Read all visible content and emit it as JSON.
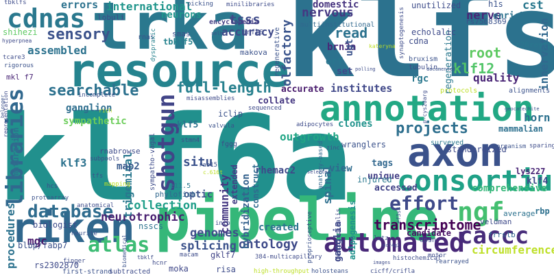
{
  "words": [
    {
      "text": "klf6a",
      "color": "#21908d"
    },
    {
      "text": "klfs",
      "color": "#2c728e"
    },
    {
      "text": "trka",
      "color": "#2a788e"
    },
    {
      "text": "resource",
      "color": "#25838e"
    },
    {
      "text": "pipeline",
      "color": "#35b779"
    },
    {
      "text": "annotation",
      "color": "#22a884"
    },
    {
      "text": "riken",
      "color": "#30678d"
    },
    {
      "text": "axon",
      "color": "#3b528b"
    },
    {
      "text": "consortium",
      "color": "#1fa187"
    },
    {
      "text": "libraries",
      "color": "#31688e"
    },
    {
      "text": "cdnas",
      "color": "#2a788e"
    },
    {
      "text": "shotgun",
      "color": "#414487"
    },
    {
      "text": "automated",
      "color": "#482878"
    },
    {
      "text": "caccc",
      "color": "#472c7a"
    },
    {
      "text": "ngf",
      "color": "#44bf70"
    },
    {
      "text": "effort",
      "color": "#3e4989"
    },
    {
      "text": "database",
      "color": "#2f6c8e"
    },
    {
      "text": "sensory",
      "color": "#3b528b"
    },
    {
      "text": "atlas",
      "color": "#3dbc74"
    },
    {
      "text": "searchable",
      "color": "#2c718e"
    },
    {
      "text": "full-length",
      "color": "#27808e"
    },
    {
      "text": "projects",
      "color": "#2e6f8e"
    },
    {
      "text": "klf12",
      "color": "#52c569"
    },
    {
      "text": "transcriptome",
      "color": "#440154"
    },
    {
      "text": "ontology",
      "color": "#3e4a89"
    },
    {
      "text": "assembled",
      "color": "#2c728e"
    },
    {
      "text": "international",
      "color": "#1f958b"
    },
    {
      "text": "accuracy",
      "color": "#3e4989"
    },
    {
      "text": "read",
      "color": "#2c728e"
    },
    {
      "text": "root",
      "color": "#5ec962"
    },
    {
      "text": "nervous",
      "color": "#453882"
    },
    {
      "text": "domestic",
      "color": "#46337f"
    },
    {
      "text": "neurotrophic",
      "color": "#481f70"
    },
    {
      "text": "genomes",
      "color": "#3e4c8a"
    },
    {
      "text": "splicing",
      "color": "#3b528b"
    },
    {
      "text": "collection",
      "color": "#1f9e89"
    },
    {
      "text": "comprehensive",
      "color": "#35b779"
    },
    {
      "text": "mgc",
      "color": "#481a6c"
    },
    {
      "text": "procedures",
      "color": "#2c728e"
    },
    {
      "text": "trigeminal",
      "color": "#2a788e"
    },
    {
      "text": "sympathetic",
      "color": "#6ccd5a"
    },
    {
      "text": "ganglion",
      "color": "#2e6e8e"
    },
    {
      "text": "community",
      "color": "#453781"
    },
    {
      "text": "olfactory",
      "color": "#3a548c"
    },
    {
      "text": "innervation",
      "color": "#31688e"
    },
    {
      "text": "quality",
      "color": "#482475"
    },
    {
      "text": "nerve",
      "color": "#482677"
    },
    {
      "text": "cst",
      "color": "#2a788e"
    },
    {
      "text": "horn",
      "color": "#2c718e"
    },
    {
      "text": "mammalian",
      "color": "#2d708e"
    },
    {
      "text": "lys227",
      "color": "#482475"
    },
    {
      "text": "klf4",
      "color": "#3e4a89"
    },
    {
      "text": "rbp",
      "color": "#2d708e"
    },
    {
      "text": "outgrowth",
      "color": "#21a585"
    },
    {
      "text": "clones",
      "color": "#20928c"
    },
    {
      "text": "candidate",
      "color": "#471063"
    },
    {
      "text": "spinal",
      "color": "#2e6f8e"
    },
    {
      "text": "ganglia",
      "color": "#3f4788"
    },
    {
      "text": "adipogenesis",
      "color": "#20928c"
    },
    {
      "text": "rhemac2",
      "color": "#3f4889"
    },
    {
      "text": "hybridization",
      "color": "#34618d"
    },
    {
      "text": "extended",
      "color": "#433e85"
    },
    {
      "text": "construct",
      "color": "#306a8e"
    },
    {
      "text": "created",
      "color": "#2c738e"
    },
    {
      "text": "situ",
      "color": "#3b528b"
    },
    {
      "text": "klf3",
      "color": "#2c728e"
    },
    {
      "text": "map2",
      "color": "#38598c"
    },
    {
      "text": "optic",
      "color": "#3b528b"
    },
    {
      "text": "klf5",
      "color": "#2c728e"
    },
    {
      "text": "view",
      "color": "#2f6b8e"
    },
    {
      "text": "accessed",
      "color": "#414287"
    },
    {
      "text": "unique",
      "color": "#433e85"
    },
    {
      "text": "tags",
      "color": "#31678e"
    },
    {
      "text": "accurate",
      "color": "#481a6c"
    },
    {
      "text": "institutes",
      "color": "#3f4788"
    },
    {
      "text": "collate",
      "color": "#453781"
    },
    {
      "text": "errors",
      "color": "#2c728e"
    },
    {
      "text": "neurons",
      "color": "#1f968b"
    },
    {
      "text": "tsss",
      "color": "#3e4a89"
    },
    {
      "text": "encyclopedia",
      "color": "#433d84"
    },
    {
      "text": "brn3a",
      "color": "#482878"
    },
    {
      "text": "ugt",
      "color": "#3b528b"
    },
    {
      "text": "orf",
      "color": "#2a768e"
    },
    {
      "text": "set",
      "color": "#3e4a89"
    },
    {
      "text": "rgc",
      "color": "#2a788e"
    },
    {
      "text": "h1s",
      "color": "#3b528b"
    },
    {
      "text": "enriched",
      "color": "#2c728e"
    },
    {
      "text": "rs7568369",
      "color": "#3b528b"
    },
    {
      "text": "r26reyfp",
      "color": "#2a788e"
    },
    {
      "text": "tbklf5",
      "color": "#26828e"
    },
    {
      "text": "rnabrowse",
      "color": "#3e4c8a"
    },
    {
      "text": "maturation",
      "color": "#2e6f8e"
    },
    {
      "text": "phylofish",
      "color": "#31688e"
    },
    {
      "text": "iclip",
      "color": "#3b528b"
    },
    {
      "text": "mkl f7",
      "color": "#482475"
    },
    {
      "text": "shihezi",
      "color": "#5ec962"
    },
    {
      "text": "biologist",
      "color": "#3e4c8a"
    },
    {
      "text": "blbp/fabp7",
      "color": "#3b528b"
    },
    {
      "text": "nsscs",
      "color": "#2c728e"
    },
    {
      "text": "rs2302870",
      "color": "#3e4a89"
    },
    {
      "text": "gklf7",
      "color": "#414487"
    },
    {
      "text": "risa",
      "color": "#3e4c8a"
    },
    {
      "text": "moka",
      "color": "#3f4788"
    },
    {
      "text": "first-strand",
      "color": "#3b528b"
    },
    {
      "text": "subtracted",
      "color": "#3e4c8a"
    },
    {
      "text": "circumference",
      "color": "#bddf26"
    },
    {
      "text": "veldman",
      "color": "#3e4a89"
    },
    {
      "text": "frrslb",
      "color": "#31688e"
    },
    {
      "text": "average",
      "color": "#2c728e"
    },
    {
      "text": "lutz",
      "color": "#3e4c8a"
    },
    {
      "text": "histochemical",
      "color": "#3e4c8a"
    },
    {
      "text": "injured",
      "color": "#2a788e"
    },
    {
      "text": "standardized",
      "color": "#3e4c8a"
    },
    {
      "text": "wranglers",
      "color": "#3b528b"
    },
    {
      "text": "surveyed",
      "color": "#2a788e"
    },
    {
      "text": "unutilized",
      "color": "#3e4c8a"
    },
    {
      "text": "regeneration",
      "color": "#2a788e"
    },
    {
      "text": "echolalic",
      "color": "#3e4a89"
    },
    {
      "text": "regenerative",
      "color": "#3b528b"
    },
    {
      "text": "cdna",
      "color": "#3e4c8a"
    },
    {
      "text": "makova",
      "color": "#3b528b"
    },
    {
      "text": "multiinstitutional",
      "color": "#31688e"
    },
    {
      "text": "minilibraries",
      "color": "#3e4c8a"
    },
    {
      "text": "picking",
      "color": "#3b528b"
    },
    {
      "text": "smas",
      "color": "#3e4c8a"
    },
    {
      "text": "lobuli",
      "color": "#3e4a89"
    },
    {
      "text": "rnas",
      "color": "#3b528b"
    },
    {
      "text": "inflS",
      "color": "#3e4c8a"
    },
    {
      "text": "dyspraxic",
      "color": "#26828e"
    },
    {
      "text": "tcare3",
      "color": "#3e4c8a"
    },
    {
      "text": "rigorous",
      "color": "#3b528b"
    },
    {
      "text": "tbklfs",
      "color": "#3e4c8a"
    },
    {
      "text": "protocols",
      "color": "#bddf26"
    },
    {
      "text": "alignments",
      "color": "#3b528b"
    },
    {
      "text": "misassemblies",
      "color": "#3e4a89"
    },
    {
      "text": "tubulin",
      "color": "#3e4c8a"
    },
    {
      "text": "bruxism",
      "color": "#3b528b"
    },
    {
      "text": "synaptogenesis",
      "color": "#3e4c8a"
    },
    {
      "text": "proprioceptive",
      "color": "#3b528b"
    },
    {
      "text": "dpsn",
      "color": "#3e4a89"
    },
    {
      "text": "motor",
      "color": "#3e4c8a"
    },
    {
      "text": "rearrayed",
      "color": "#3b528b"
    },
    {
      "text": "longitudinalis",
      "color": "#3e4c8a"
    },
    {
      "text": "anatomy-based",
      "color": "#31688e"
    },
    {
      "text": "384-multicapillary",
      "color": "#3e4a89"
    },
    {
      "text": "high-throughput",
      "color": "#bddf26"
    },
    {
      "text": "holosteans",
      "color": "#3b528b"
    },
    {
      "text": "cicff/crifla",
      "color": "#3e4c8a"
    },
    {
      "text": "hcnr",
      "color": "#3e4a89"
    },
    {
      "text": "finger",
      "color": "#3e4c8a"
    },
    {
      "text": "biomedical",
      "color": "#3b528b"
    },
    {
      "text": "macam",
      "color": "#3e4c8a"
    },
    {
      "text": "inib",
      "color": "#3e4a89"
    },
    {
      "text": "neurite",
      "color": "#3b528b"
    },
    {
      "text": "anatomical",
      "color": "#3e4c8a"
    },
    {
      "text": "protoarray",
      "color": "#3b528b"
    },
    {
      "text": "hcs",
      "color": "#3e4c8a"
    },
    {
      "text": "tfs",
      "color": "#3b528b"
    },
    {
      "text": "mapping",
      "color": "#bddf26"
    },
    {
      "text": "subpools",
      "color": "#3e4c8a"
    },
    {
      "text": "fggg",
      "color": "#3e4a89"
    },
    {
      "text": "rab15",
      "color": "#3b528b"
    },
    {
      "text": "stmn4",
      "color": "#3e4c8a"
    },
    {
      "text": "valvula",
      "color": "#3b528b"
    },
    {
      "text": "adipocytes",
      "color": "#3e4c8a"
    },
    {
      "text": "sequenced",
      "color": "#3e4a89"
    },
    {
      "text": "incomplete",
      "color": "#3b528b"
    },
    {
      "text": "representation",
      "color": "#3e4c8a"
    },
    {
      "text": "sparing",
      "color": "#3e4c8a"
    },
    {
      "text": "organism",
      "color": "#3b528b"
    },
    {
      "text": "e11.5",
      "color": "#2a788e"
    },
    {
      "text": "sympatho-vagal",
      "color": "#3e4c8a"
    },
    {
      "text": "hyperpnea",
      "color": "#3e4a89"
    },
    {
      "text": "belonger",
      "color": "#3b528b"
    },
    {
      "text": "rich",
      "color": "#bddf26"
    },
    {
      "text": "zinc",
      "color": "#3e4c8a"
    },
    {
      "text": "documented",
      "color": "#3b528b"
    },
    {
      "text": "p-cys20arg",
      "color": "#3e4c8a"
    },
    {
      "text": "geocatechite",
      "color": "#3b528b"
    },
    {
      "text": "ecf4g2",
      "color": "#3e4c8a"
    },
    {
      "text": "kateryna",
      "color": "#bddf26"
    },
    {
      "text": "polling",
      "color": "#3e4c8a"
    },
    {
      "text": "selh",
      "color": "#3b528b"
    },
    {
      "text": "images",
      "color": "#3e4c8a"
    },
    {
      "text": "c.616t",
      "color": "#bddf26"
    },
    {
      "text": "selected",
      "color": "#3e4c8a"
    },
    {
      "text": "ef3s8",
      "color": "#3b528b"
    },
    {
      "text": "tbklf",
      "color": "#3e4c8a"
    }
  ]
}
